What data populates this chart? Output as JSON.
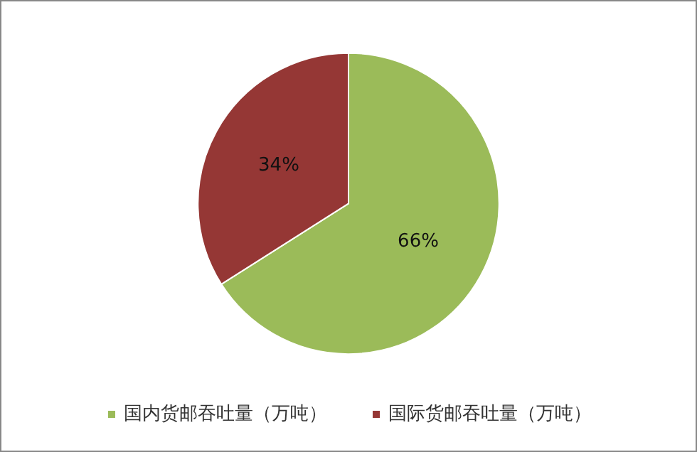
{
  "chart_data": {
    "type": "pie",
    "categories": [
      "国内货邮吞吐量（万吨）",
      "国际货邮吞吐量（万吨）"
    ],
    "values": [
      66,
      34
    ],
    "colors": [
      "#9bbb59",
      "#953735"
    ],
    "value_labels": [
      "66%",
      "34%"
    ],
    "legend": "bottom"
  }
}
